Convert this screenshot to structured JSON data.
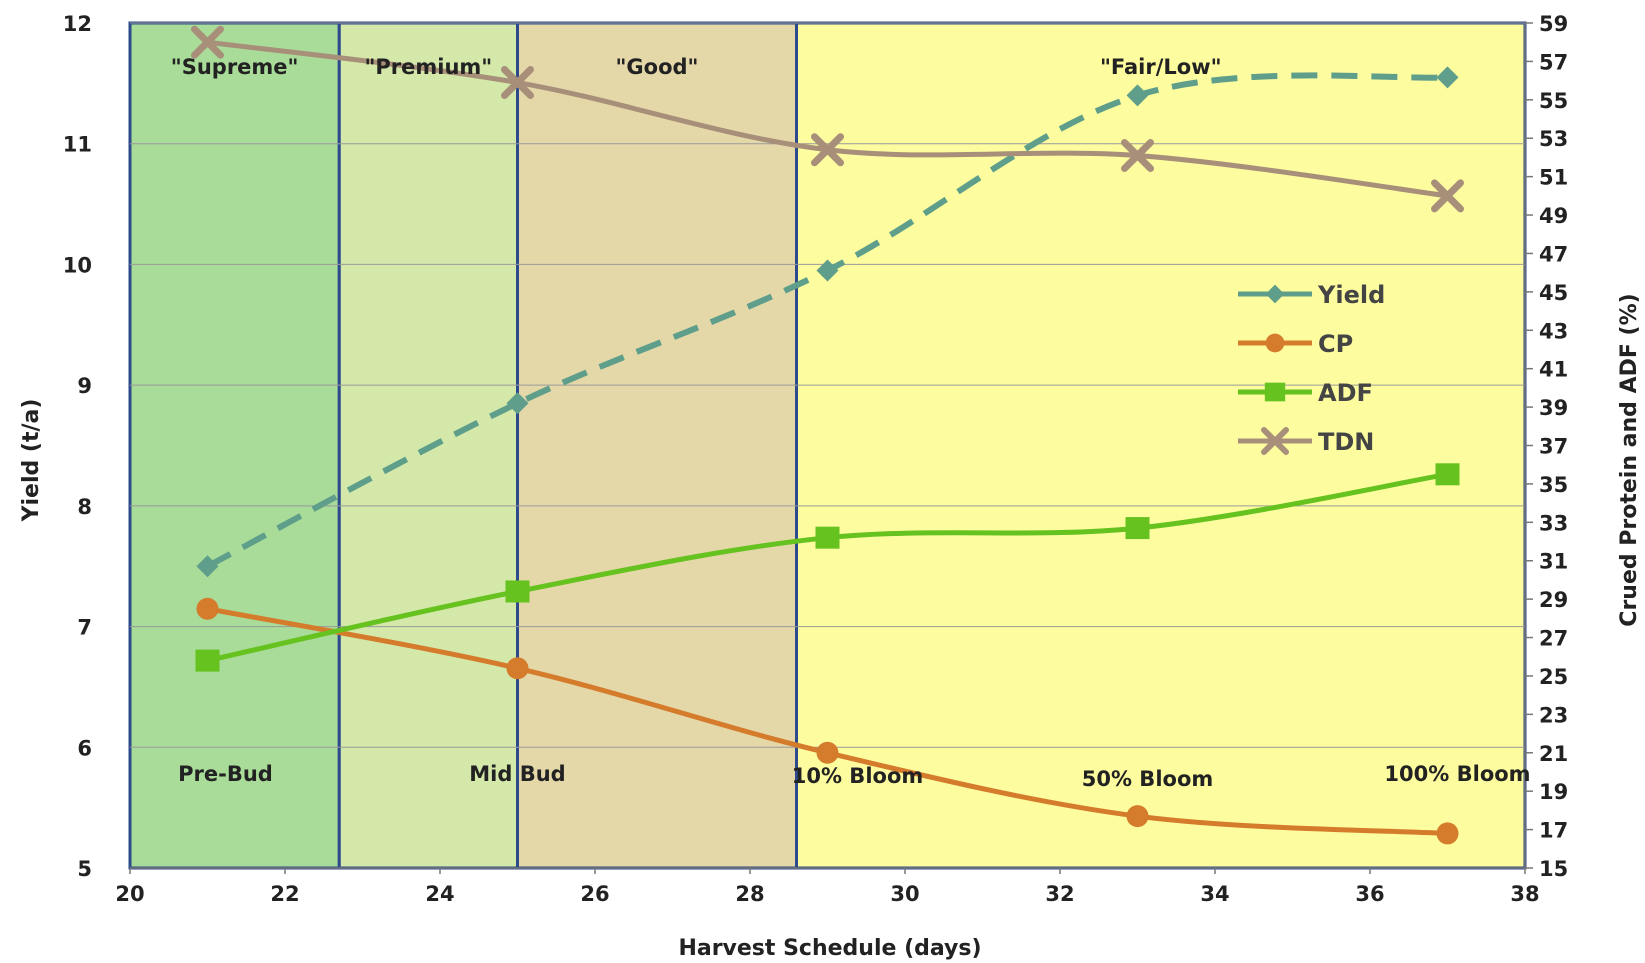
{
  "chart_data": {
    "type": "line",
    "xlabel": "Harvest  Schedule (days)",
    "ylabel": "Yield (t/a)",
    "y2label": "Crued Protein and ADF (%)",
    "xlim": [
      20,
      38
    ],
    "ylim": [
      5,
      12
    ],
    "y2lim": [
      15,
      59
    ],
    "xticks": [
      "20",
      "22",
      "24",
      "26",
      "28",
      "30",
      "32",
      "34",
      "36",
      "38"
    ],
    "yticks": [
      "5",
      "6",
      "7",
      "8",
      "9",
      "10",
      "11",
      "12"
    ],
    "y2ticks": [
      "15",
      "17",
      "19",
      "21",
      "23",
      "25",
      "27",
      "29",
      "31",
      "33",
      "35",
      "37",
      "39",
      "41",
      "43",
      "45",
      "47",
      "49",
      "51",
      "53",
      "55",
      "57",
      "59"
    ],
    "grid": "horizontal",
    "legend_position": "right-middle",
    "bands": [
      {
        "label": "\"Supreme\"",
        "x0": 20,
        "x1": 22.7,
        "color": "#a8dc98"
      },
      {
        "label": "\"Premium\"",
        "x0": 22.7,
        "x1": 25,
        "color": "#d3e8a9"
      },
      {
        "label": "\"Good\"",
        "x0": 25,
        "x1": 28.6,
        "color": "#e4d8a9"
      },
      {
        "label": "\"Fair/Low\"",
        "x0": 28.6,
        "x1": 38,
        "color": "#fdfd9f"
      }
    ],
    "stages": [
      {
        "label": "Pre-Bud",
        "x": 21
      },
      {
        "label": "Mid Bud",
        "x": 25
      },
      {
        "label": "10% Bloom",
        "x": 29
      },
      {
        "label": "50% Bloom",
        "x": 33
      },
      {
        "label": "100% Bloom",
        "x": 37
      }
    ],
    "series": [
      {
        "name": "Yield",
        "axis": "left",
        "color": "#5e9e8a",
        "dash": true,
        "marker": "diamond",
        "x": [
          21,
          25,
          29,
          33,
          37
        ],
        "values": [
          7.5,
          8.85,
          9.95,
          11.4,
          11.55
        ]
      },
      {
        "name": "CP",
        "axis": "right",
        "color": "#d57b2c",
        "dash": false,
        "marker": "circle",
        "x": [
          21,
          25,
          29,
          33,
          37
        ],
        "values": [
          28.5,
          25.4,
          21,
          17.7,
          16.8
        ]
      },
      {
        "name": "ADF",
        "axis": "right",
        "color": "#66c21e",
        "dash": false,
        "marker": "square",
        "x": [
          21,
          25,
          29,
          33,
          37
        ],
        "values": [
          25.8,
          29.4,
          32.2,
          32.7,
          35.5
        ]
      },
      {
        "name": "TDN",
        "axis": "right",
        "color": "#a88f7a",
        "dash": false,
        "marker": "x",
        "x": [
          21,
          25,
          29,
          33,
          37
        ],
        "values": [
          58,
          55.9,
          52.4,
          52.1,
          50
        ]
      }
    ]
  }
}
